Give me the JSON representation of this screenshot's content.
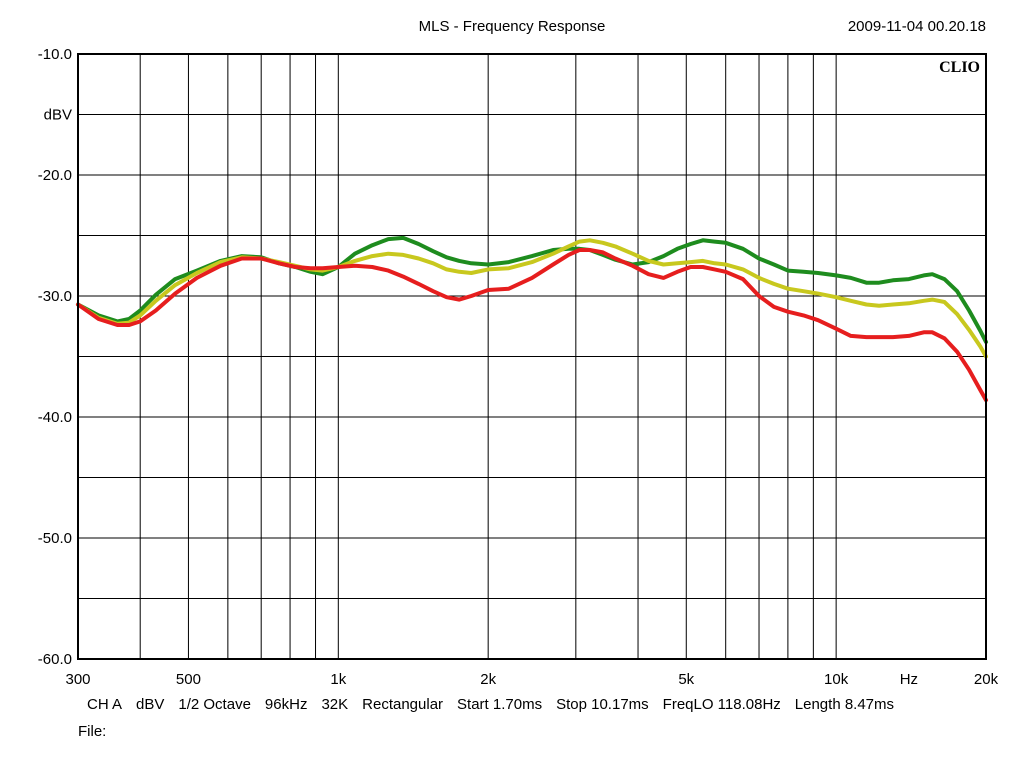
{
  "header": {
    "title": "MLS - Frequency Response",
    "timestamp": "2009-11-04 00.20.18"
  },
  "brand": "CLIO",
  "info": {
    "items": [
      "CH A",
      "dBV",
      "1/2 Octave",
      "96kHz",
      "32K",
      "Rectangular",
      "Start 1.70ms",
      "Stop 10.17ms",
      "FreqLO 118.08Hz",
      "Length 8.47ms"
    ],
    "file_label": "File:"
  },
  "chart_data": {
    "type": "line",
    "title": "MLS - Frequency Response",
    "xlabel": "Hz",
    "ylabel": "dBV",
    "x_scale": "log",
    "xlim": [
      300,
      20000
    ],
    "ylim": [
      -60,
      -10
    ],
    "grid": true,
    "x_tick_labels": [
      {
        "value": 300,
        "label": "300"
      },
      {
        "value": 500,
        "label": "500"
      },
      {
        "value": 1000,
        "label": "1k"
      },
      {
        "value": 2000,
        "label": "2k"
      },
      {
        "value": 5000,
        "label": "5k"
      },
      {
        "value": 10000,
        "label": "10k"
      },
      {
        "value": 20000,
        "label": "20k"
      }
    ],
    "x_gridlines": [
      300,
      400,
      500,
      600,
      700,
      800,
      900,
      1000,
      2000,
      3000,
      4000,
      5000,
      6000,
      7000,
      8000,
      9000,
      10000,
      20000
    ],
    "y_tick_labels": [
      {
        "value": -10,
        "label": "-10.0"
      },
      {
        "value": -20,
        "label": "-20.0"
      },
      {
        "value": -30,
        "label": "-30.0"
      },
      {
        "value": -40,
        "label": "-40.0"
      },
      {
        "value": -50,
        "label": "-50.0"
      },
      {
        "value": -60,
        "label": "-60.0"
      }
    ],
    "y_gridlines": [
      -10,
      -15,
      -20,
      -25,
      -30,
      -35,
      -40,
      -45,
      -50,
      -55,
      -60
    ],
    "x_unit_label": {
      "value": 14000,
      "label": "Hz"
    },
    "y_unit_label": {
      "value": -15,
      "label": "dBV"
    },
    "series": [
      {
        "color": "#1e8c1e",
        "x": [
          300,
          330,
          360,
          380,
          400,
          430,
          470,
          520,
          580,
          640,
          700,
          760,
          820,
          880,
          930,
          1000,
          1080,
          1170,
          1260,
          1350,
          1450,
          1550,
          1650,
          1750,
          1850,
          2000,
          2200,
          2450,
          2700,
          2900,
          3050,
          3200,
          3400,
          3600,
          3900,
          4200,
          4500,
          4800,
          5100,
          5400,
          5700,
          6000,
          6500,
          7000,
          7500,
          8000,
          8600,
          9200,
          10000,
          10700,
          11500,
          12200,
          13000,
          14000,
          15000,
          15600,
          16500,
          17500,
          18500,
          19500,
          20000
        ],
        "values": [
          -30.7,
          -31.6,
          -32.1,
          -31.9,
          -31.2,
          -29.9,
          -28.6,
          -27.9,
          -27.1,
          -26.7,
          -26.8,
          -27.3,
          -27.6,
          -28.0,
          -28.2,
          -27.6,
          -26.5,
          -25.8,
          -25.3,
          -25.2,
          -25.7,
          -26.3,
          -26.8,
          -27.1,
          -27.3,
          -27.4,
          -27.2,
          -26.7,
          -26.2,
          -26.1,
          -26.1,
          -26.2,
          -26.6,
          -27.0,
          -27.4,
          -27.2,
          -26.7,
          -26.1,
          -25.7,
          -25.4,
          -25.5,
          -25.6,
          -26.1,
          -26.9,
          -27.4,
          -27.9,
          -28.0,
          -28.1,
          -28.3,
          -28.5,
          -28.9,
          -28.9,
          -28.7,
          -28.6,
          -28.3,
          -28.2,
          -28.6,
          -29.6,
          -31.2,
          -32.9,
          -33.8
        ]
      },
      {
        "color": "#c8c81e",
        "x": [
          300,
          330,
          360,
          380,
          400,
          430,
          470,
          520,
          580,
          640,
          700,
          760,
          820,
          880,
          930,
          1000,
          1080,
          1170,
          1260,
          1350,
          1450,
          1550,
          1650,
          1750,
          1850,
          2000,
          2200,
          2450,
          2700,
          2900,
          3050,
          3200,
          3400,
          3600,
          3900,
          4200,
          4500,
          4800,
          5100,
          5400,
          5700,
          6000,
          6500,
          7000,
          7500,
          8000,
          8600,
          9200,
          10000,
          10700,
          11500,
          12200,
          13000,
          14000,
          15000,
          15600,
          16500,
          17500,
          18500,
          19500,
          20000
        ],
        "values": [
          -30.7,
          -31.8,
          -32.3,
          -32.2,
          -31.6,
          -30.4,
          -29.1,
          -28.1,
          -27.2,
          -26.8,
          -26.9,
          -27.2,
          -27.5,
          -27.8,
          -27.9,
          -27.6,
          -27.1,
          -26.7,
          -26.5,
          -26.6,
          -26.9,
          -27.3,
          -27.8,
          -28.0,
          -28.1,
          -27.8,
          -27.7,
          -27.2,
          -26.5,
          -25.9,
          -25.5,
          -25.4,
          -25.6,
          -25.9,
          -26.5,
          -27.1,
          -27.4,
          -27.3,
          -27.2,
          -27.1,
          -27.3,
          -27.4,
          -27.8,
          -28.5,
          -29.0,
          -29.4,
          -29.6,
          -29.8,
          -30.1,
          -30.4,
          -30.7,
          -30.8,
          -30.7,
          -30.6,
          -30.4,
          -30.3,
          -30.5,
          -31.5,
          -32.8,
          -34.2,
          -35.0
        ]
      },
      {
        "color": "#e61e1e",
        "x": [
          300,
          330,
          360,
          380,
          400,
          430,
          470,
          520,
          580,
          640,
          700,
          760,
          820,
          880,
          930,
          1000,
          1080,
          1170,
          1260,
          1350,
          1450,
          1550,
          1650,
          1750,
          1850,
          2000,
          2200,
          2450,
          2700,
          2900,
          3050,
          3200,
          3400,
          3600,
          3900,
          4200,
          4500,
          4800,
          5100,
          5400,
          5700,
          6000,
          6500,
          7000,
          7500,
          8000,
          8600,
          9200,
          10000,
          10700,
          11500,
          12200,
          13000,
          14000,
          15000,
          15600,
          16500,
          17500,
          18500,
          19500,
          20000
        ],
        "values": [
          -30.7,
          -31.9,
          -32.4,
          -32.4,
          -32.1,
          -31.2,
          -29.8,
          -28.5,
          -27.5,
          -26.9,
          -26.9,
          -27.3,
          -27.6,
          -27.7,
          -27.7,
          -27.6,
          -27.5,
          -27.6,
          -27.9,
          -28.4,
          -29.0,
          -29.6,
          -30.1,
          -30.3,
          -30.0,
          -29.5,
          -29.4,
          -28.5,
          -27.4,
          -26.6,
          -26.2,
          -26.2,
          -26.4,
          -26.9,
          -27.5,
          -28.2,
          -28.5,
          -28.0,
          -27.6,
          -27.6,
          -27.8,
          -28.0,
          -28.6,
          -30.0,
          -30.9,
          -31.3,
          -31.6,
          -32.0,
          -32.7,
          -33.3,
          -33.4,
          -33.4,
          -33.4,
          -33.3,
          -33.0,
          -33.0,
          -33.5,
          -34.6,
          -36.1,
          -37.8,
          -38.6
        ]
      }
    ]
  }
}
